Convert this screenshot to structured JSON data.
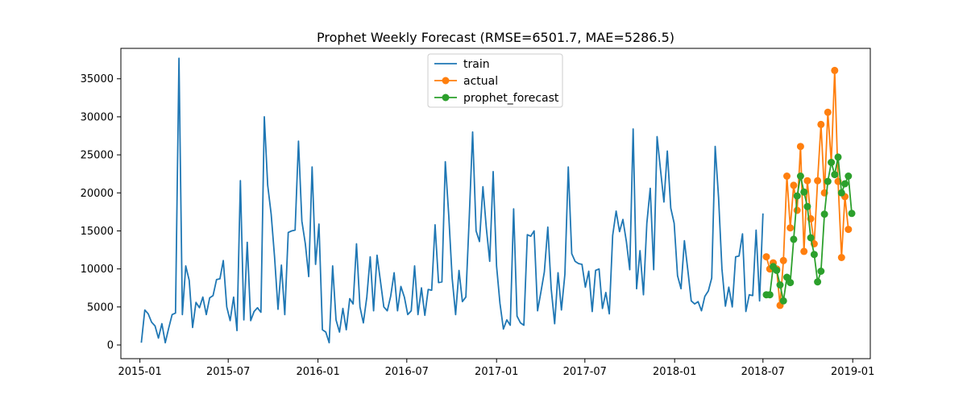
{
  "chart_data": {
    "type": "line",
    "title": "Prophet Weekly Forecast (RMSE=6501.7, MAE=5286.5)",
    "xlabel": "",
    "ylabel": "",
    "x_axis": {
      "type": "date",
      "range": [
        "2014-11-23",
        "2019-02-06"
      ]
    },
    "ylim": [
      -1800,
      39000
    ],
    "x_ticks": [
      {
        "date": "2015-01-01",
        "label": "2015-01"
      },
      {
        "date": "2015-07-01",
        "label": "2015-07"
      },
      {
        "date": "2016-01-01",
        "label": "2016-01"
      },
      {
        "date": "2016-07-01",
        "label": "2016-07"
      },
      {
        "date": "2017-01-01",
        "label": "2017-01"
      },
      {
        "date": "2017-07-01",
        "label": "2017-07"
      },
      {
        "date": "2018-01-01",
        "label": "2018-01"
      },
      {
        "date": "2018-07-01",
        "label": "2018-07"
      },
      {
        "date": "2019-01-01",
        "label": "2019-01"
      }
    ],
    "y_ticks": [
      {
        "value": 0,
        "label": "0"
      },
      {
        "value": 5000,
        "label": "5000"
      },
      {
        "value": 10000,
        "label": "10000"
      },
      {
        "value": 15000,
        "label": "15000"
      },
      {
        "value": 20000,
        "label": "20000"
      },
      {
        "value": 25000,
        "label": "25000"
      },
      {
        "value": 30000,
        "label": "30000"
      },
      {
        "value": 35000,
        "label": "35000"
      }
    ],
    "grid": false,
    "legend": {
      "placement": "upper center"
    },
    "series": [
      {
        "name": "train",
        "color": "#1f77b4",
        "marker": "none",
        "points": [
          [
            "2015-01-04",
            300
          ],
          [
            "2015-01-11",
            4600
          ],
          [
            "2015-01-18",
            4100
          ],
          [
            "2015-01-25",
            3000
          ],
          [
            "2015-02-01",
            2500
          ],
          [
            "2015-02-08",
            900
          ],
          [
            "2015-02-15",
            2800
          ],
          [
            "2015-02-22",
            300
          ],
          [
            "2015-03-01",
            2200
          ],
          [
            "2015-03-08",
            4000
          ],
          [
            "2015-03-15",
            4200
          ],
          [
            "2015-03-22",
            37700
          ],
          [
            "2015-03-29",
            4000
          ],
          [
            "2015-04-05",
            10400
          ],
          [
            "2015-04-12",
            8500
          ],
          [
            "2015-04-19",
            2300
          ],
          [
            "2015-04-26",
            5600
          ],
          [
            "2015-05-03",
            4900
          ],
          [
            "2015-05-10",
            6300
          ],
          [
            "2015-05-17",
            4000
          ],
          [
            "2015-05-24",
            6200
          ],
          [
            "2015-05-31",
            6500
          ],
          [
            "2015-06-07",
            8600
          ],
          [
            "2015-06-14",
            8700
          ],
          [
            "2015-06-21",
            11100
          ],
          [
            "2015-06-28",
            5000
          ],
          [
            "2015-07-05",
            3200
          ],
          [
            "2015-07-12",
            6300
          ],
          [
            "2015-07-19",
            1900
          ],
          [
            "2015-07-26",
            21600
          ],
          [
            "2015-08-02",
            3300
          ],
          [
            "2015-08-09",
            13500
          ],
          [
            "2015-08-16",
            3200
          ],
          [
            "2015-08-23",
            4400
          ],
          [
            "2015-08-30",
            4900
          ],
          [
            "2015-09-06",
            4300
          ],
          [
            "2015-09-13",
            30000
          ],
          [
            "2015-09-20",
            21000
          ],
          [
            "2015-09-27",
            17200
          ],
          [
            "2015-10-04",
            11600
          ],
          [
            "2015-10-11",
            4700
          ],
          [
            "2015-10-18",
            10500
          ],
          [
            "2015-10-25",
            4000
          ],
          [
            "2015-11-01",
            14800
          ],
          [
            "2015-11-08",
            15000
          ],
          [
            "2015-11-15",
            15100
          ],
          [
            "2015-11-22",
            26800
          ],
          [
            "2015-11-29",
            16300
          ],
          [
            "2015-12-06",
            13300
          ],
          [
            "2015-12-13",
            9000
          ],
          [
            "2015-12-20",
            23400
          ],
          [
            "2015-12-27",
            10600
          ],
          [
            "2016-01-03",
            15900
          ],
          [
            "2016-01-10",
            2000
          ],
          [
            "2016-01-17",
            1700
          ],
          [
            "2016-01-24",
            300
          ],
          [
            "2016-01-31",
            10400
          ],
          [
            "2016-02-07",
            3300
          ],
          [
            "2016-02-14",
            1700
          ],
          [
            "2016-02-21",
            4800
          ],
          [
            "2016-02-28",
            2000
          ],
          [
            "2016-03-06",
            6100
          ],
          [
            "2016-03-13",
            5400
          ],
          [
            "2016-03-20",
            13300
          ],
          [
            "2016-03-27",
            5000
          ],
          [
            "2016-04-03",
            2900
          ],
          [
            "2016-04-10",
            6300
          ],
          [
            "2016-04-17",
            11600
          ],
          [
            "2016-04-24",
            4500
          ],
          [
            "2016-05-01",
            11800
          ],
          [
            "2016-05-08",
            8400
          ],
          [
            "2016-05-15",
            5000
          ],
          [
            "2016-05-22",
            4500
          ],
          [
            "2016-05-29",
            6400
          ],
          [
            "2016-06-05",
            9500
          ],
          [
            "2016-06-12",
            4500
          ],
          [
            "2016-06-19",
            7700
          ],
          [
            "2016-06-26",
            6300
          ],
          [
            "2016-07-03",
            4000
          ],
          [
            "2016-07-10",
            4500
          ],
          [
            "2016-07-17",
            10400
          ],
          [
            "2016-07-24",
            4000
          ],
          [
            "2016-07-31",
            7500
          ],
          [
            "2016-08-07",
            3900
          ],
          [
            "2016-08-14",
            7300
          ],
          [
            "2016-08-21",
            7200
          ],
          [
            "2016-08-28",
            15800
          ],
          [
            "2016-09-04",
            8200
          ],
          [
            "2016-09-11",
            8300
          ],
          [
            "2016-09-18",
            24100
          ],
          [
            "2016-09-25",
            17000
          ],
          [
            "2016-10-02",
            8800
          ],
          [
            "2016-10-09",
            4000
          ],
          [
            "2016-10-16",
            9800
          ],
          [
            "2016-10-23",
            5700
          ],
          [
            "2016-10-30",
            6300
          ],
          [
            "2016-11-06",
            16700
          ],
          [
            "2016-11-13",
            28000
          ],
          [
            "2016-11-20",
            15000
          ],
          [
            "2016-11-27",
            13600
          ],
          [
            "2016-12-04",
            20800
          ],
          [
            "2016-12-11",
            15400
          ],
          [
            "2016-12-18",
            11000
          ],
          [
            "2016-12-25",
            22800
          ],
          [
            "2017-01-01",
            10400
          ],
          [
            "2017-01-08",
            5500
          ],
          [
            "2017-01-15",
            2100
          ],
          [
            "2017-01-22",
            3300
          ],
          [
            "2017-01-29",
            2600
          ],
          [
            "2017-02-05",
            17900
          ],
          [
            "2017-02-12",
            3800
          ],
          [
            "2017-02-19",
            2900
          ],
          [
            "2017-02-26",
            2600
          ],
          [
            "2017-03-05",
            14500
          ],
          [
            "2017-03-12",
            14300
          ],
          [
            "2017-03-19",
            15000
          ],
          [
            "2017-03-26",
            4500
          ],
          [
            "2017-04-02",
            7000
          ],
          [
            "2017-04-09",
            9600
          ],
          [
            "2017-04-16",
            15500
          ],
          [
            "2017-04-23",
            7400
          ],
          [
            "2017-04-30",
            2800
          ],
          [
            "2017-05-07",
            9500
          ],
          [
            "2017-05-14",
            4600
          ],
          [
            "2017-05-21",
            9300
          ],
          [
            "2017-05-28",
            23400
          ],
          [
            "2017-06-04",
            12000
          ],
          [
            "2017-06-11",
            11000
          ],
          [
            "2017-06-18",
            10700
          ],
          [
            "2017-06-25",
            10600
          ],
          [
            "2017-07-02",
            7600
          ],
          [
            "2017-07-09",
            9700
          ],
          [
            "2017-07-16",
            4400
          ],
          [
            "2017-07-23",
            9800
          ],
          [
            "2017-07-30",
            10000
          ],
          [
            "2017-08-06",
            4800
          ],
          [
            "2017-08-13",
            6900
          ],
          [
            "2017-08-20",
            4100
          ],
          [
            "2017-08-27",
            14400
          ],
          [
            "2017-09-03",
            17600
          ],
          [
            "2017-09-10",
            14900
          ],
          [
            "2017-09-17",
            16500
          ],
          [
            "2017-09-24",
            13600
          ],
          [
            "2017-10-01",
            9900
          ],
          [
            "2017-10-08",
            28400
          ],
          [
            "2017-10-15",
            7400
          ],
          [
            "2017-10-22",
            12400
          ],
          [
            "2017-10-29",
            6600
          ],
          [
            "2017-11-05",
            16000
          ],
          [
            "2017-11-12",
            20600
          ],
          [
            "2017-11-19",
            9900
          ],
          [
            "2017-11-26",
            27400
          ],
          [
            "2017-12-03",
            23100
          ],
          [
            "2017-12-10",
            18800
          ],
          [
            "2017-12-17",
            25500
          ],
          [
            "2017-12-24",
            18000
          ],
          [
            "2017-12-31",
            16000
          ],
          [
            "2018-01-07",
            9100
          ],
          [
            "2018-01-14",
            7400
          ],
          [
            "2018-01-21",
            13700
          ],
          [
            "2018-01-28",
            9800
          ],
          [
            "2018-02-04",
            5800
          ],
          [
            "2018-02-11",
            5400
          ],
          [
            "2018-02-18",
            5700
          ],
          [
            "2018-02-25",
            4500
          ],
          [
            "2018-03-04",
            6400
          ],
          [
            "2018-03-11",
            7100
          ],
          [
            "2018-03-18",
            8800
          ],
          [
            "2018-03-25",
            26100
          ],
          [
            "2018-04-01",
            19400
          ],
          [
            "2018-04-08",
            10000
          ],
          [
            "2018-04-15",
            5100
          ],
          [
            "2018-04-22",
            7600
          ],
          [
            "2018-04-29",
            5000
          ],
          [
            "2018-05-06",
            11600
          ],
          [
            "2018-05-13",
            11700
          ],
          [
            "2018-05-20",
            14600
          ],
          [
            "2018-05-27",
            4400
          ],
          [
            "2018-06-03",
            6600
          ],
          [
            "2018-06-10",
            6500
          ],
          [
            "2018-06-17",
            15100
          ],
          [
            "2018-06-24",
            5800
          ],
          [
            "2018-07-01",
            17300
          ]
        ]
      },
      {
        "name": "actual",
        "color": "#ff7f0e",
        "marker": "circle",
        "points": [
          [
            "2018-07-08",
            11600
          ],
          [
            "2018-07-15",
            10000
          ],
          [
            "2018-07-22",
            10800
          ],
          [
            "2018-07-29",
            10000
          ],
          [
            "2018-08-05",
            5200
          ],
          [
            "2018-08-12",
            11100
          ],
          [
            "2018-08-19",
            22200
          ],
          [
            "2018-08-26",
            15400
          ],
          [
            "2018-09-02",
            21000
          ],
          [
            "2018-09-09",
            17700
          ],
          [
            "2018-09-16",
            26100
          ],
          [
            "2018-09-23",
            12300
          ],
          [
            "2018-09-30",
            21600
          ],
          [
            "2018-10-07",
            16600
          ],
          [
            "2018-10-14",
            13300
          ],
          [
            "2018-10-21",
            21600
          ],
          [
            "2018-10-28",
            29000
          ],
          [
            "2018-11-04",
            20000
          ],
          [
            "2018-11-11",
            30600
          ],
          [
            "2018-11-18",
            24000
          ],
          [
            "2018-11-25",
            36100
          ],
          [
            "2018-12-02",
            21500
          ],
          [
            "2018-12-09",
            11500
          ],
          [
            "2018-12-16",
            19500
          ],
          [
            "2018-12-23",
            15200
          ]
        ]
      },
      {
        "name": "prophet_forecast",
        "color": "#2ca02c",
        "marker": "circle",
        "points": [
          [
            "2018-07-08",
            6600
          ],
          [
            "2018-07-15",
            6600
          ],
          [
            "2018-07-22",
            10300
          ],
          [
            "2018-07-29",
            9800
          ],
          [
            "2018-08-05",
            7900
          ],
          [
            "2018-08-12",
            5800
          ],
          [
            "2018-08-19",
            8900
          ],
          [
            "2018-08-26",
            8200
          ],
          [
            "2018-09-02",
            13900
          ],
          [
            "2018-09-09",
            19600
          ],
          [
            "2018-09-16",
            22200
          ],
          [
            "2018-09-23",
            20100
          ],
          [
            "2018-09-30",
            18200
          ],
          [
            "2018-10-07",
            14100
          ],
          [
            "2018-10-14",
            11900
          ],
          [
            "2018-10-21",
            8300
          ],
          [
            "2018-10-28",
            9700
          ],
          [
            "2018-11-04",
            17200
          ],
          [
            "2018-11-11",
            21500
          ],
          [
            "2018-11-18",
            24000
          ],
          [
            "2018-11-25",
            22400
          ],
          [
            "2018-12-02",
            24700
          ],
          [
            "2018-12-09",
            20000
          ],
          [
            "2018-12-16",
            21200
          ],
          [
            "2018-12-23",
            22200
          ],
          [
            "2018-12-30",
            17300
          ]
        ]
      }
    ]
  }
}
